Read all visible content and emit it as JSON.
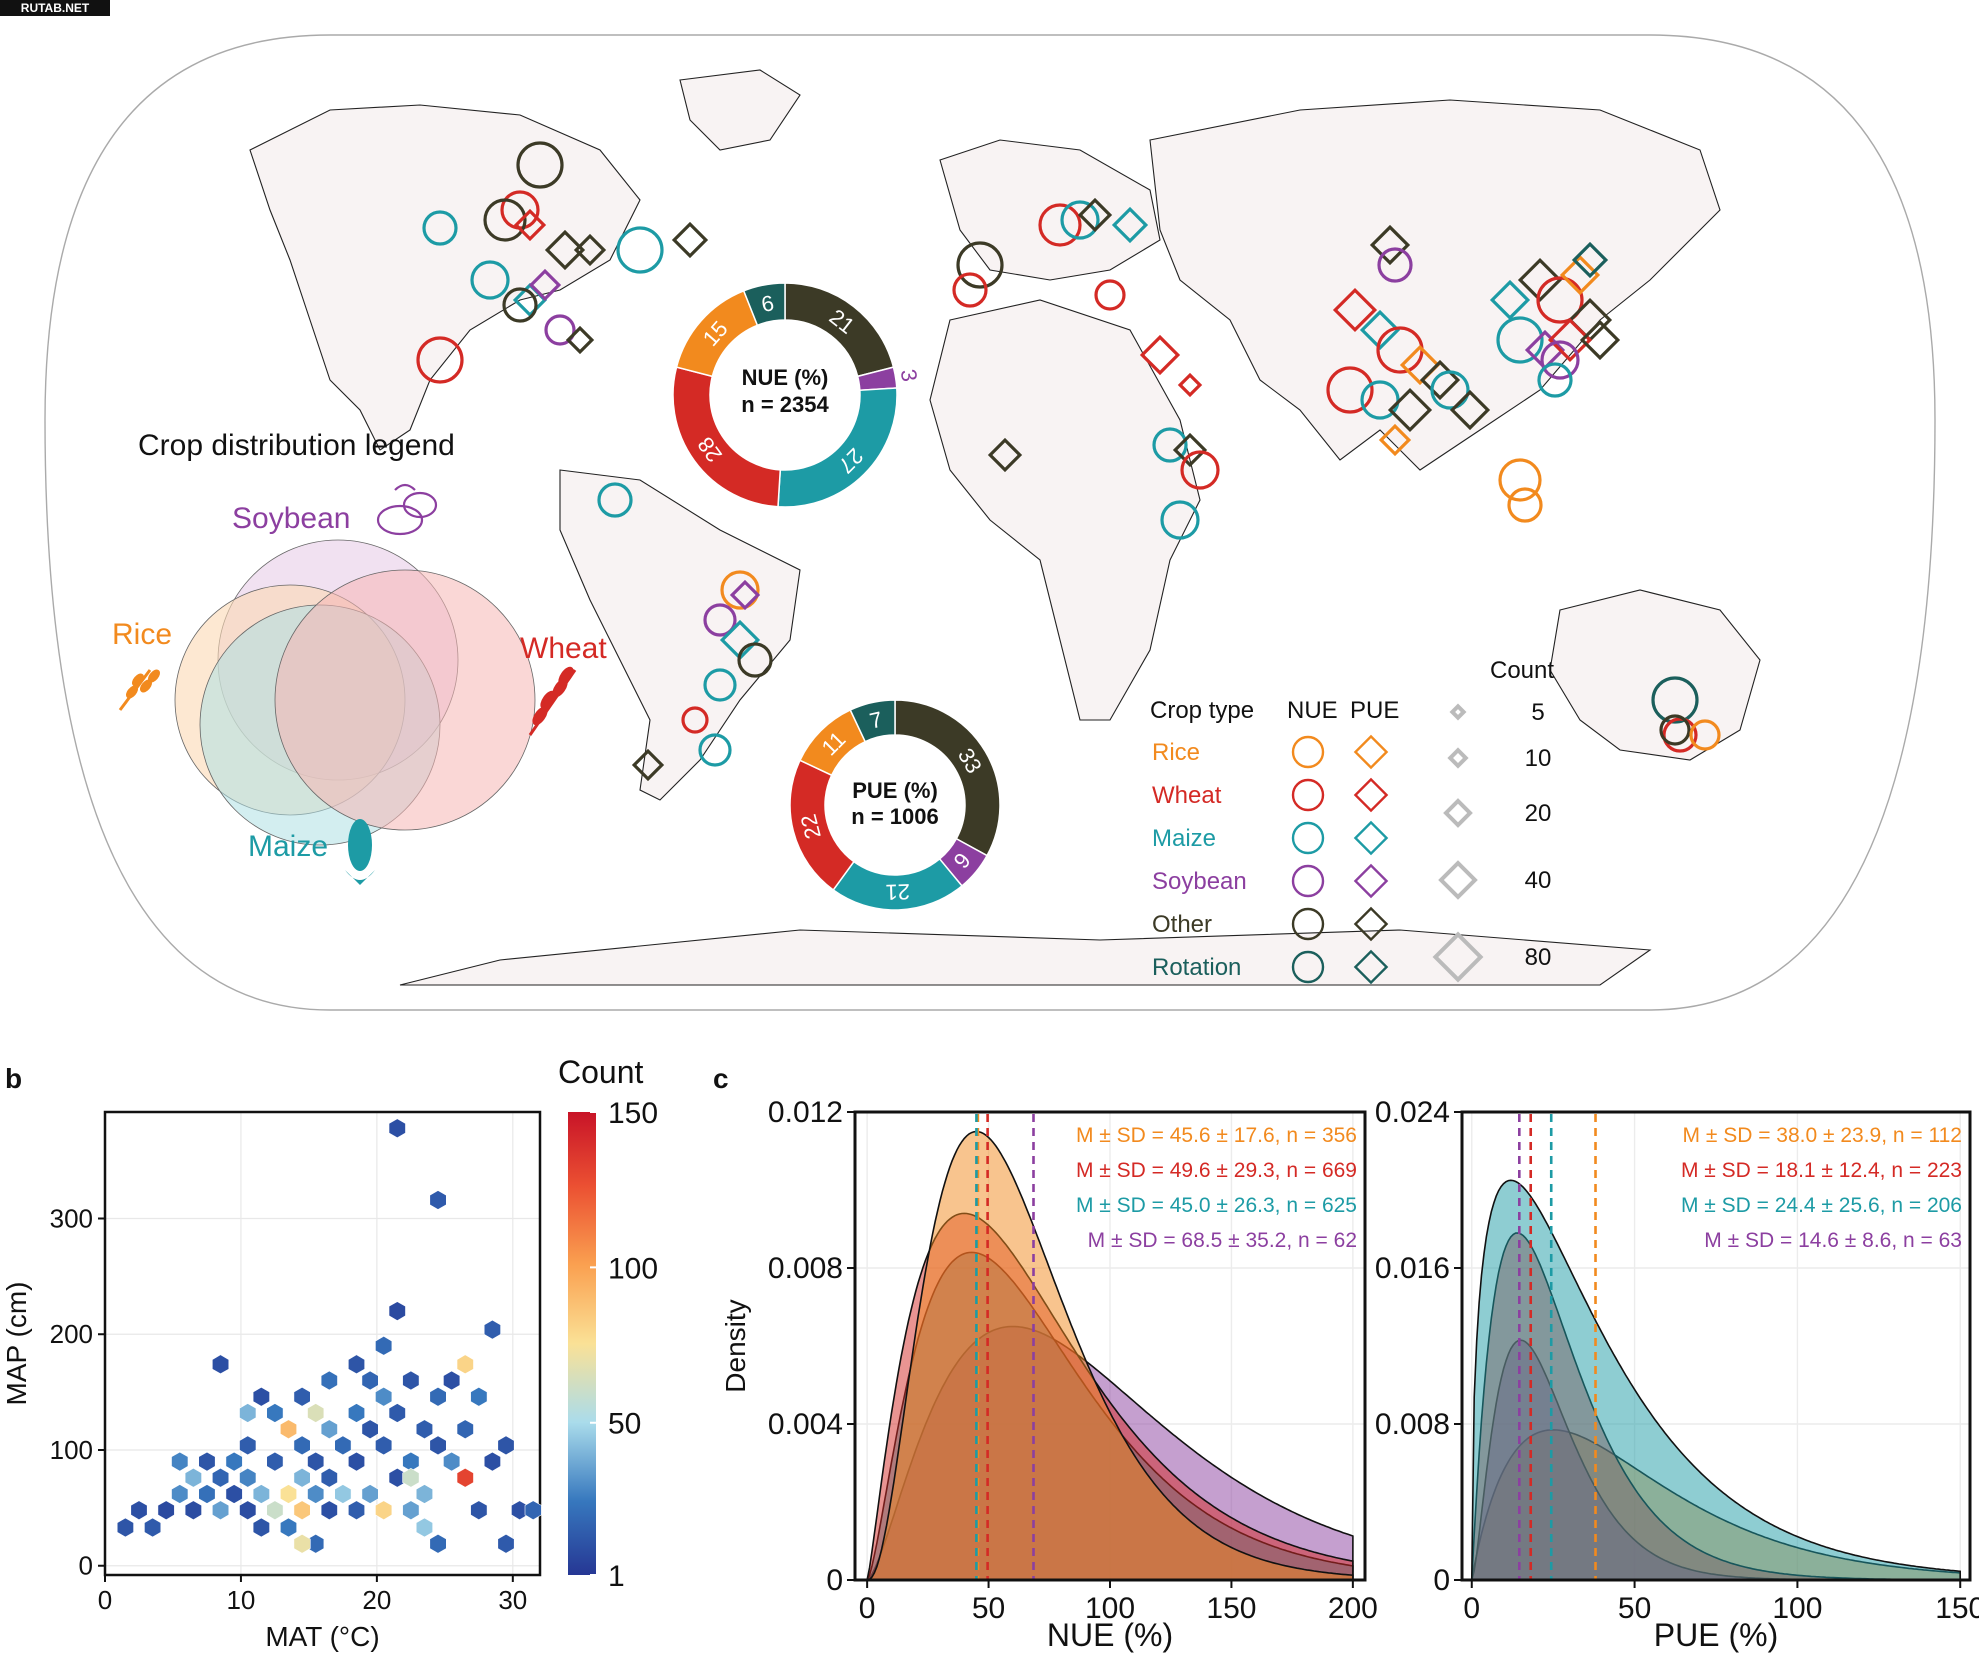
{
  "watermark": "RUTAB.NET",
  "colors": {
    "rice": "#f28a1e",
    "wheat": "#d42a25",
    "maize": "#1d9ba5",
    "soybean": "#8c3fa0",
    "other": "#3c3a26",
    "rotation": "#1b5f5c",
    "land_fill": "#ffffff",
    "ocean_fill": "#ffffff"
  },
  "panel_a": {
    "crop_legend_title": "Crop distribution legend",
    "venn_labels": {
      "soybean": "Soybean",
      "rice": "Rice",
      "wheat": "Wheat",
      "maize": "Maize"
    },
    "legend": {
      "header_crop": "Crop type",
      "header_nue": "NUE",
      "header_pue": "PUE",
      "header_count": "Count",
      "crops": [
        "Rice",
        "Wheat",
        "Maize",
        "Soybean",
        "Other",
        "Rotation"
      ],
      "counts": [
        "5",
        "10",
        "20",
        "40",
        "80"
      ]
    },
    "nue_donut": {
      "label": "NUE (%)",
      "n": "n = 2354",
      "segments": [
        {
          "crop": "other",
          "value": 21,
          "label": "21"
        },
        {
          "crop": "soybean",
          "value": 3,
          "label": "3"
        },
        {
          "crop": "maize",
          "value": 27,
          "label": "27"
        },
        {
          "crop": "wheat",
          "value": 28,
          "label": "28"
        },
        {
          "crop": "rice",
          "value": 15,
          "label": "15"
        },
        {
          "crop": "rotation",
          "value": 6,
          "label": "6"
        }
      ]
    },
    "pue_donut": {
      "label": "PUE (%)",
      "n": "n = 1006",
      "segments": [
        {
          "crop": "other",
          "value": 33,
          "label": "33"
        },
        {
          "crop": "soybean",
          "value": 6,
          "label": "6"
        },
        {
          "crop": "maize",
          "value": 21,
          "label": "21"
        },
        {
          "crop": "wheat",
          "value": 22,
          "label": "22"
        },
        {
          "crop": "rice",
          "value": 11,
          "label": "11"
        },
        {
          "crop": "rotation",
          "value": 7,
          "label": "7"
        }
      ]
    }
  },
  "chart_data": [
    {
      "panel": "b",
      "type": "heatmap",
      "subtype": "hexbin",
      "xlabel": "MAT (°C)",
      "ylabel": "MAP (cm)",
      "xlim": [
        0,
        32
      ],
      "ylim": [
        -8,
        392
      ],
      "xticks": [
        0,
        10,
        20,
        30
      ],
      "yticks": [
        0,
        100,
        200,
        300
      ],
      "colorbar": {
        "title": "Count",
        "ticks": [
          1,
          50,
          100,
          150
        ],
        "range": [
          1,
          150
        ]
      },
      "points": [
        [
          1.5,
          33,
          12
        ],
        [
          2.5,
          48,
          10
        ],
        [
          3.5,
          33,
          14
        ],
        [
          4.5,
          48,
          8
        ],
        [
          5.5,
          62,
          30
        ],
        [
          6.5,
          48,
          9
        ],
        [
          6.5,
          76,
          40
        ],
        [
          7.5,
          62,
          22
        ],
        [
          7.5,
          90,
          12
        ],
        [
          8.5,
          48,
          35
        ],
        [
          8.5,
          76,
          18
        ],
        [
          9.5,
          62,
          10
        ],
        [
          9.5,
          90,
          25
        ],
        [
          10.5,
          48,
          9
        ],
        [
          10.5,
          104,
          15
        ],
        [
          10.5,
          76,
          28
        ],
        [
          11.5,
          62,
          40
        ],
        [
          11.5,
          33,
          12
        ],
        [
          12.5,
          48,
          60
        ],
        [
          12.5,
          90,
          15
        ],
        [
          13.5,
          62,
          75
        ],
        [
          13.5,
          118,
          90
        ],
        [
          13.5,
          33,
          25
        ],
        [
          14.5,
          48,
          85
        ],
        [
          14.5,
          76,
          40
        ],
        [
          14.5,
          104,
          20
        ],
        [
          15.5,
          62,
          30
        ],
        [
          15.5,
          90,
          12
        ],
        [
          15.5,
          19,
          20
        ],
        [
          16.5,
          48,
          10
        ],
        [
          16.5,
          118,
          35
        ],
        [
          16.5,
          76,
          15
        ],
        [
          17.5,
          62,
          45
        ],
        [
          17.5,
          104,
          20
        ],
        [
          18.5,
          48,
          15
        ],
        [
          18.5,
          90,
          10
        ],
        [
          18.5,
          132,
          25
        ],
        [
          19.5,
          62,
          35
        ],
        [
          19.5,
          118,
          12
        ],
        [
          19.5,
          160,
          18
        ],
        [
          20.5,
          48,
          80
        ],
        [
          20.5,
          104,
          15
        ],
        [
          20.5,
          146,
          30
        ],
        [
          20.5,
          190,
          20
        ],
        [
          21.5,
          76,
          10
        ],
        [
          21.5,
          132,
          14
        ],
        [
          21.5,
          220,
          8
        ],
        [
          21.5,
          378,
          10
        ],
        [
          22.5,
          90,
          25
        ],
        [
          22.5,
          160,
          12
        ],
        [
          22.5,
          48,
          35
        ],
        [
          23.5,
          118,
          15
        ],
        [
          23.5,
          62,
          40
        ],
        [
          24.5,
          104,
          12
        ],
        [
          24.5,
          146,
          20
        ],
        [
          24.5,
          316,
          14
        ],
        [
          25.5,
          90,
          30
        ],
        [
          25.5,
          160,
          10
        ],
        [
          26.5,
          76,
          130
        ],
        [
          26.5,
          118,
          18
        ],
        [
          26.5,
          174,
          80
        ],
        [
          27.5,
          48,
          12
        ],
        [
          27.5,
          146,
          25
        ],
        [
          28.5,
          90,
          10
        ],
        [
          28.5,
          204,
          15
        ],
        [
          29.5,
          104,
          12
        ],
        [
          29.5,
          19,
          14
        ],
        [
          30.5,
          48,
          10
        ],
        [
          31.5,
          48,
          18
        ],
        [
          12.5,
          132,
          25
        ],
        [
          11.5,
          146,
          10
        ],
        [
          14.5,
          146,
          15
        ],
        [
          16.5,
          160,
          22
        ],
        [
          18.5,
          174,
          12
        ],
        [
          8.5,
          174,
          10
        ],
        [
          10.5,
          132,
          40
        ],
        [
          5.5,
          90,
          28
        ],
        [
          23.5,
          33,
          45
        ],
        [
          24.5,
          19,
          20
        ],
        [
          22.5,
          76,
          60
        ],
        [
          15.5,
          132,
          65
        ],
        [
          14.5,
          19,
          70
        ]
      ]
    },
    {
      "panel": "c-left",
      "type": "area",
      "subtype": "density",
      "xlabel": "NUE (%)",
      "ylabel": "Density",
      "xlim": [
        -5,
        205
      ],
      "ylim": [
        0,
        0.012
      ],
      "xticks": [
        0,
        50,
        100,
        150,
        200
      ],
      "yticks": [
        0,
        0.004,
        0.008,
        0.012
      ],
      "ytick_labels": [
        "0",
        "0.004",
        "0.008",
        "0.012"
      ],
      "series": [
        {
          "name": "Rice",
          "crop": "rice",
          "mean": 45.6,
          "sd": 17.6,
          "n": 356,
          "mode_x": 45,
          "peak": 0.0115,
          "label": "M ± SD = 45.6 ± 17.6, n = 356"
        },
        {
          "name": "Wheat",
          "crop": "wheat",
          "mean": 49.6,
          "sd": 29.3,
          "n": 669,
          "mode_x": 40,
          "peak": 0.0094,
          "label": "M ± SD = 49.6 ± 29.3, n = 669"
        },
        {
          "name": "Maize",
          "crop": "maize",
          "mean": 45.0,
          "sd": 26.3,
          "n": 625,
          "mode_x": 43,
          "peak": 0.0084,
          "label": "M ± SD = 45.0 ± 26.3, n = 625"
        },
        {
          "name": "Soybean",
          "crop": "soybean",
          "mean": 68.5,
          "sd": 35.2,
          "n": 62,
          "mode_x": 60,
          "peak": 0.0065,
          "label": "M ± SD = 68.5 ± 35.2, n = 62"
        }
      ]
    },
    {
      "panel": "c-right",
      "type": "area",
      "subtype": "density",
      "xlabel": "PUE (%)",
      "ylabel": "",
      "xlim": [
        -3,
        153
      ],
      "ylim": [
        0,
        0.024
      ],
      "xticks": [
        0,
        50,
        100,
        150
      ],
      "yticks": [
        0,
        0.008,
        0.016,
        0.024
      ],
      "ytick_labels": [
        "0",
        "0.008",
        "0.016",
        "0.024"
      ],
      "series": [
        {
          "name": "Rice",
          "crop": "rice",
          "mean": 38.0,
          "sd": 23.9,
          "n": 112,
          "mode_x": 25,
          "peak": 0.0077,
          "label": "M ± SD = 38.0 ± 23.9, n = 112"
        },
        {
          "name": "Wheat",
          "crop": "wheat",
          "mean": 18.1,
          "sd": 12.4,
          "n": 223,
          "mode_x": 14,
          "peak": 0.0178,
          "label": "M ± SD = 18.1 ± 12.4, n = 223"
        },
        {
          "name": "Maize",
          "crop": "maize",
          "mean": 24.4,
          "sd": 25.6,
          "n": 206,
          "mode_x": 12,
          "peak": 0.0205,
          "label": "M ± SD = 24.4 ± 25.6, n = 206"
        },
        {
          "name": "Soybean",
          "crop": "soybean",
          "mean": 14.6,
          "sd": 8.6,
          "n": 63,
          "mode_x": 15,
          "peak": 0.0123,
          "label": "M ± SD = 14.6 ± 8.6, n = 63"
        }
      ]
    }
  ],
  "panel_labels": {
    "b": "b",
    "c": "c"
  }
}
